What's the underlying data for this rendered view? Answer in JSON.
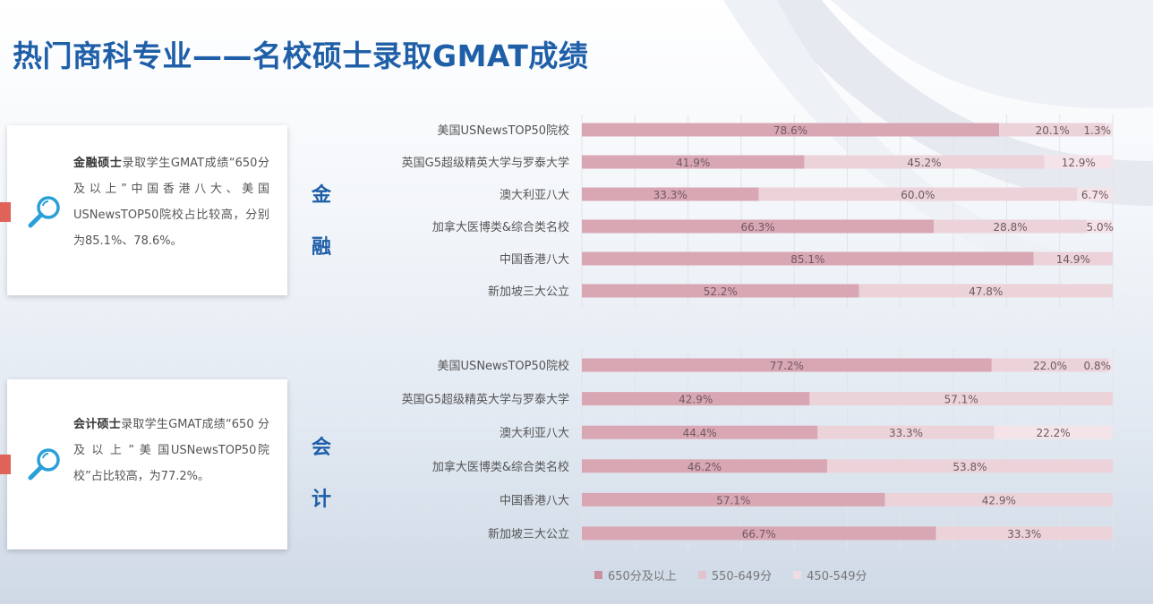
{
  "title": "热门商科专业——名校硕士录取GMAT成绩",
  "cards": [
    {
      "bold": "金融硕士",
      "text": "录取学生GMAT成绩“650分及以上”中国香港八大、美国USNewsTOP50院校占比较高，分别为85.1%、78.6%。"
    },
    {
      "bold": "会计硕士",
      "text": "录取学生GMAT成绩“650 分 及 以 上 ” 美 国USNewsTOP50院校”占比较高，为77.2%。"
    }
  ],
  "icons": [
    "magnifier-icon"
  ],
  "colors": {
    "s1": "#d9a6b3",
    "s2": "#ecd3da",
    "s3": "#f4e4e9",
    "accent": "#1f5fa8",
    "tag": "#e0635a"
  },
  "chart_data": [
    {
      "type": "bar",
      "orientation": "horizontal",
      "stacked": "100%",
      "category_label": "金融",
      "categories": [
        "美国USNewsTOP50院校",
        "英国G5超级精英大学与罗泰大学",
        "澳大利亚八大",
        "加拿大医博类&综合类名校",
        "中国香港八大",
        "新加坡三大公立"
      ],
      "series": [
        {
          "name": "650分及以上",
          "values": [
            78.6,
            41.9,
            33.3,
            66.3,
            85.1,
            52.2
          ],
          "labels": [
            "78.6%",
            "41.9%",
            "33.3%",
            "66.3%",
            "85.1%",
            "52.2%"
          ]
        },
        {
          "name": "550-649分",
          "values": [
            20.1,
            45.2,
            60.0,
            28.8,
            14.9,
            47.8
          ],
          "labels": [
            "20.1%",
            "45.2%",
            "60.0%",
            "28.8%",
            "14.9%",
            "47.8%"
          ]
        },
        {
          "name": "450-549分",
          "values": [
            1.3,
            12.9,
            6.7,
            5.0,
            0,
            0
          ],
          "labels": [
            "1.3%",
            "12.9%",
            "6.7%",
            "5.0%",
            "",
            ""
          ]
        }
      ],
      "xlim": [
        0,
        100
      ],
      "grid": true
    },
    {
      "type": "bar",
      "orientation": "horizontal",
      "stacked": "100%",
      "category_label": "会计",
      "categories": [
        "美国USNewsTOP50院校",
        "英国G5超级精英大学与罗泰大学",
        "澳大利亚八大",
        "加拿大医博类&综合类名校",
        "中国香港八大",
        "新加坡三大公立"
      ],
      "series": [
        {
          "name": "650分及以上",
          "values": [
            77.2,
            42.9,
            44.4,
            46.2,
            57.1,
            66.7
          ],
          "labels": [
            "77.2%",
            "42.9%",
            "44.4%",
            "46.2%",
            "57.1%",
            "66.7%"
          ]
        },
        {
          "name": "550-649分",
          "values": [
            22.0,
            57.1,
            33.3,
            53.8,
            42.9,
            33.3
          ],
          "labels": [
            "22.0%",
            "57.1%",
            "33.3%",
            "53.8%",
            "42.9%",
            "33.3%"
          ]
        },
        {
          "name": "450-549分",
          "values": [
            0.8,
            0,
            22.2,
            0,
            0,
            0
          ],
          "labels": [
            "0.8%",
            "",
            "22.2%",
            "",
            "",
            ""
          ]
        }
      ],
      "xlim": [
        0,
        100
      ],
      "grid": true
    }
  ],
  "legend": [
    "650分及以上",
    "550-649分",
    "450-549分"
  ]
}
